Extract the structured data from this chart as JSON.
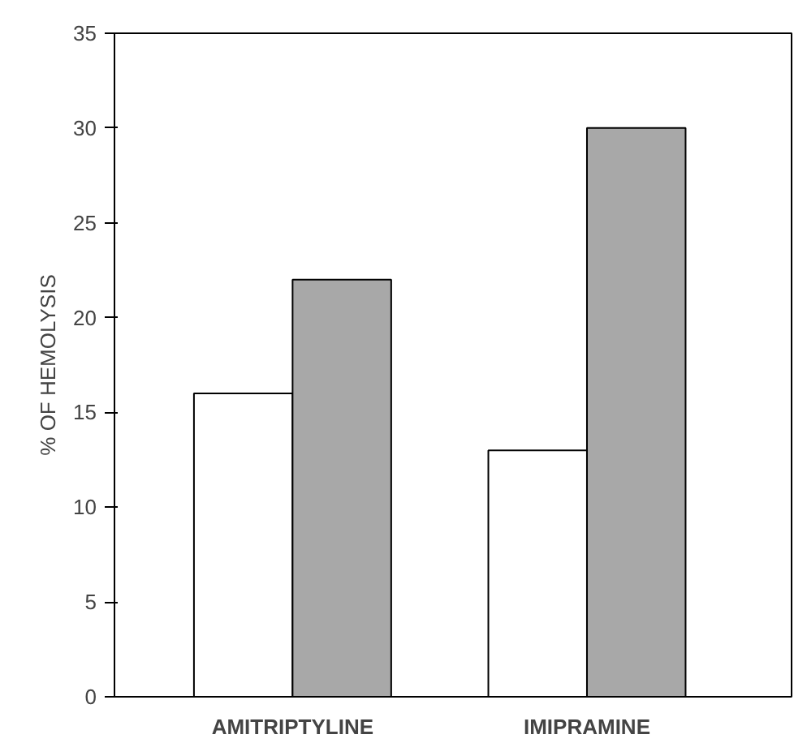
{
  "chart_data": {
    "type": "bar",
    "ylabel": "% OF HEMOLYSIS",
    "categories": [
      "AMITRIPTYLINE",
      "IMIPRAMINE"
    ],
    "series": [
      {
        "color": "#ffffff",
        "values": [
          16,
          13
        ]
      },
      {
        "color": "#a8a8a8",
        "values": [
          22,
          30
        ]
      }
    ],
    "ylim": [
      0,
      35
    ],
    "yticks": [
      0,
      5,
      10,
      15,
      20,
      25,
      30,
      35
    ],
    "grid": false
  }
}
